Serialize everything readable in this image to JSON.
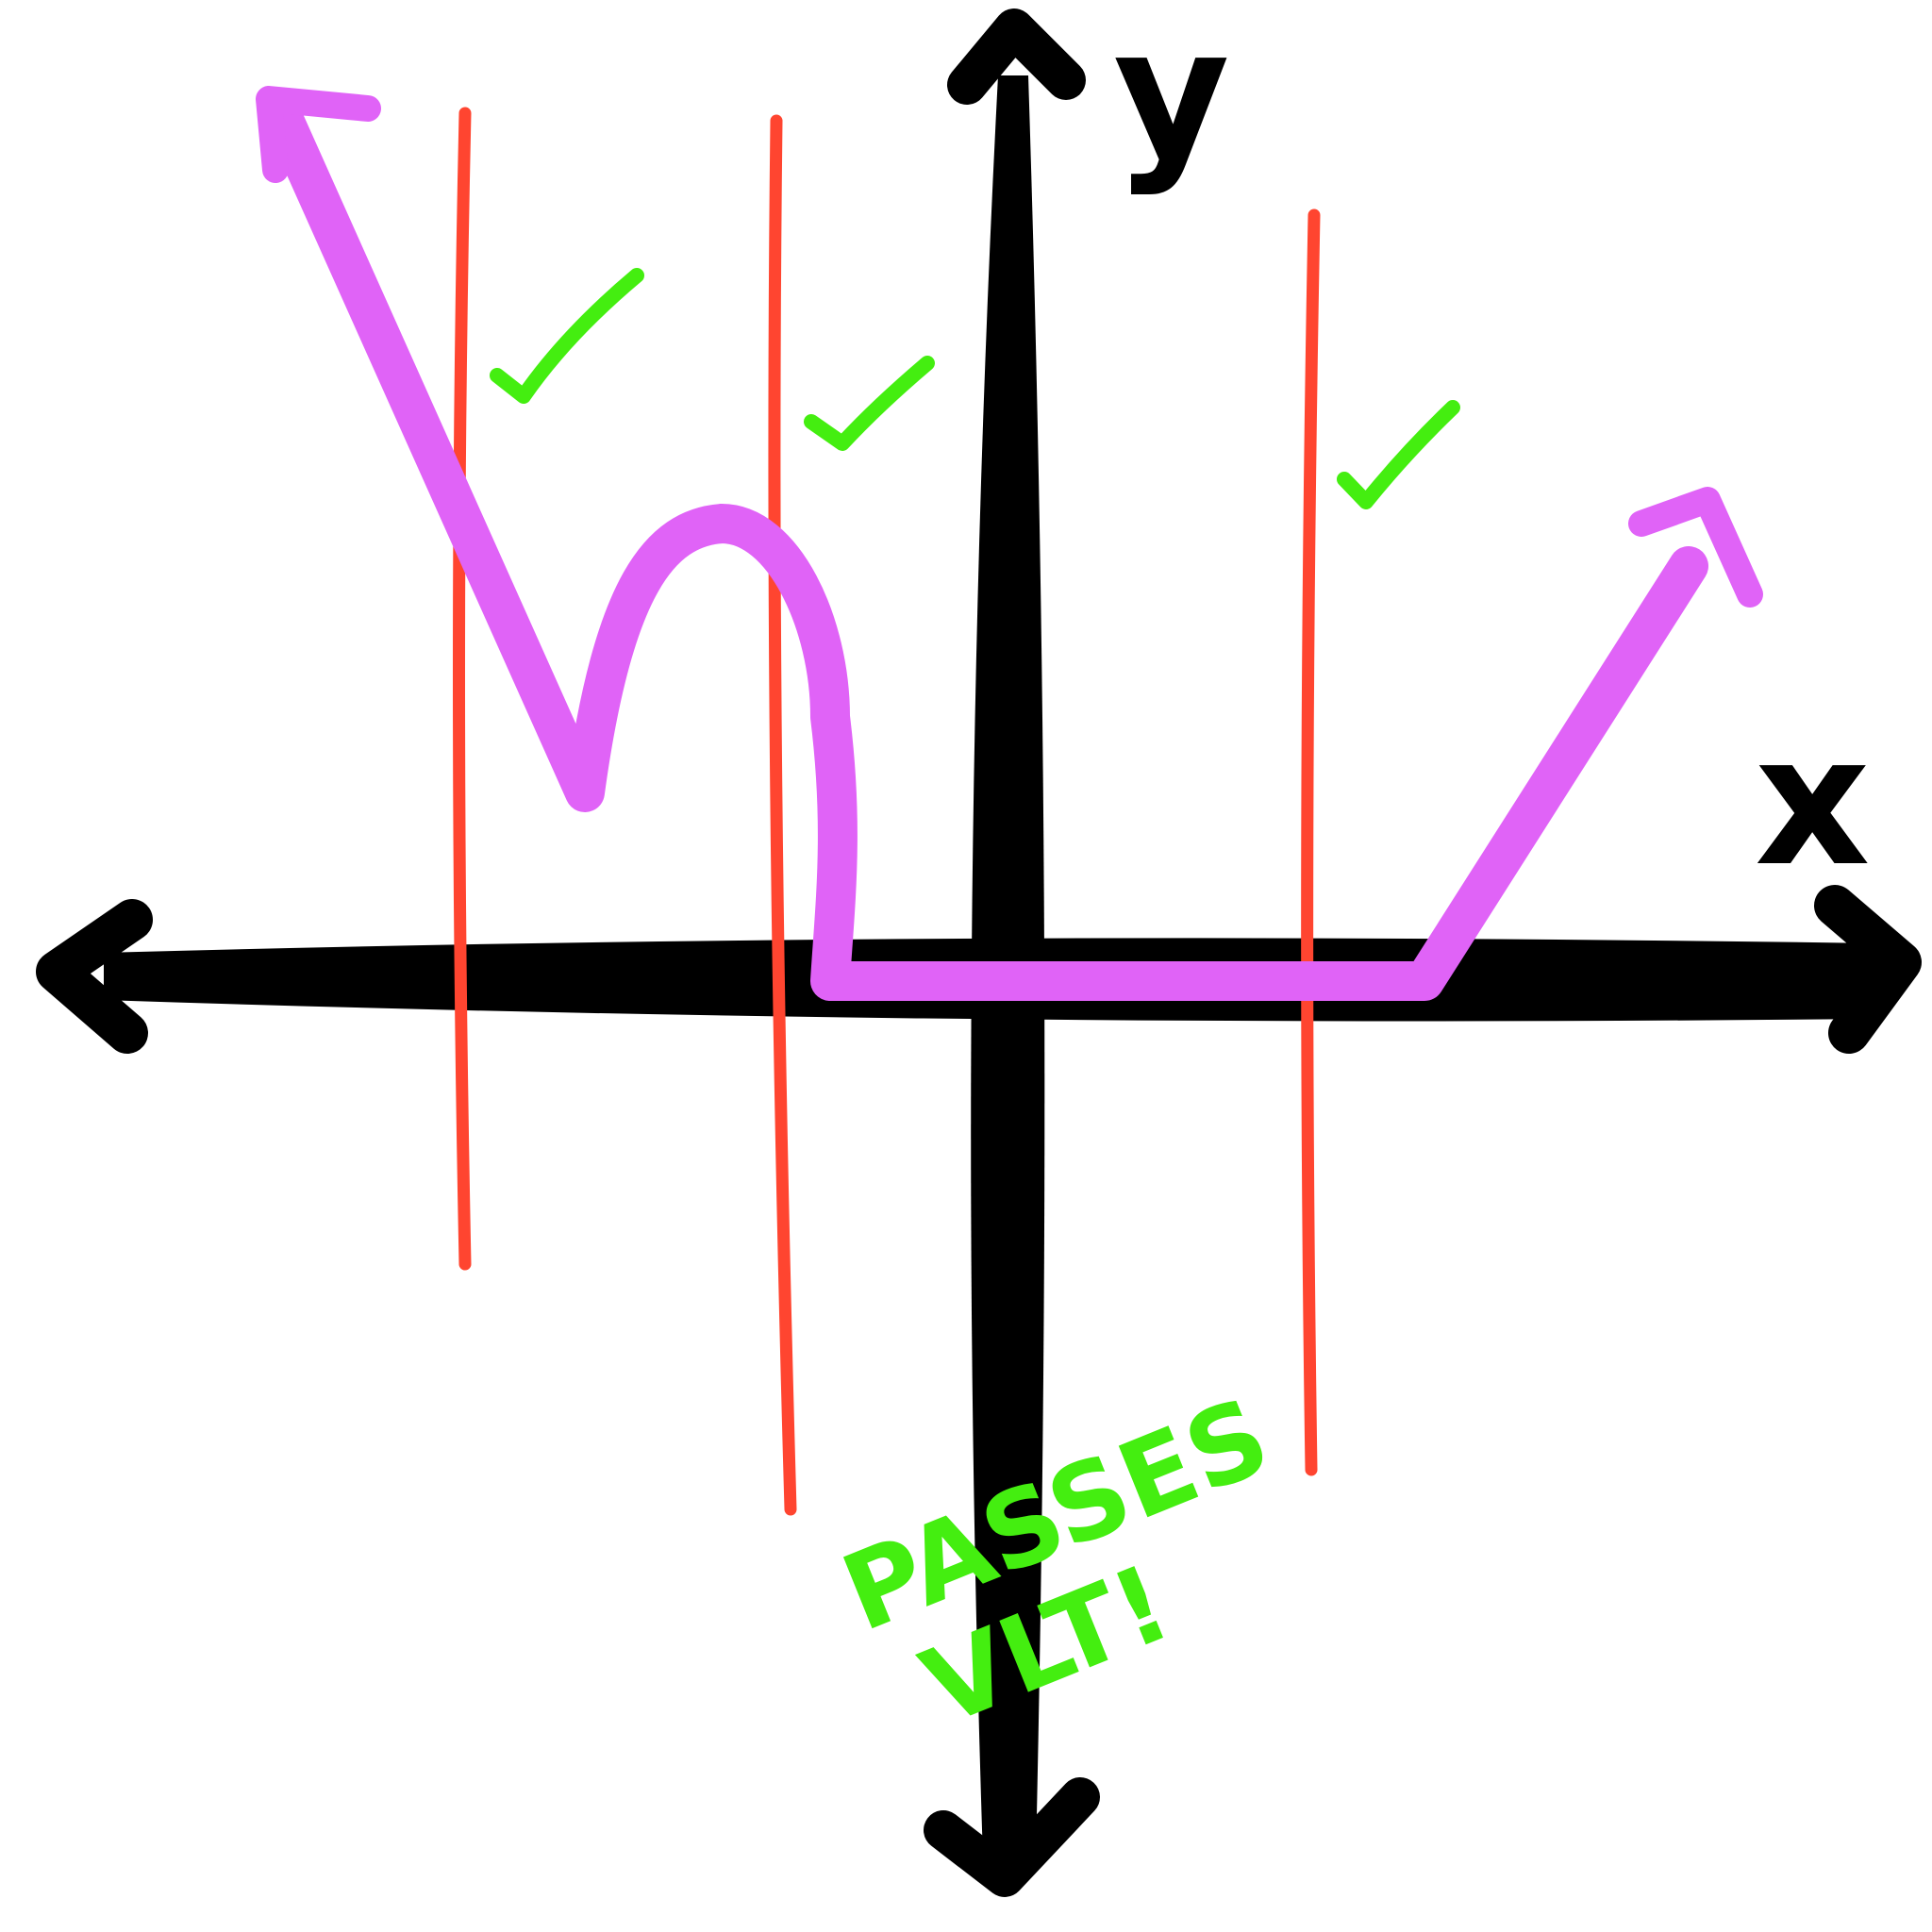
{
  "axes": {
    "x_label": "x",
    "y_label": "y"
  },
  "annotation": {
    "line1": "PASSES",
    "line2": "VLT!"
  },
  "checkmarks": [
    {
      "symbol": "✓",
      "meaning": "passes"
    },
    {
      "symbol": "✓",
      "meaning": "passes"
    },
    {
      "symbol": "✓",
      "meaning": "passes"
    }
  ],
  "colors": {
    "axes": "#000000",
    "curve": "#e063f7",
    "test_lines": "#ff4530",
    "check": "#44ee10",
    "background": "#ffffff"
  }
}
